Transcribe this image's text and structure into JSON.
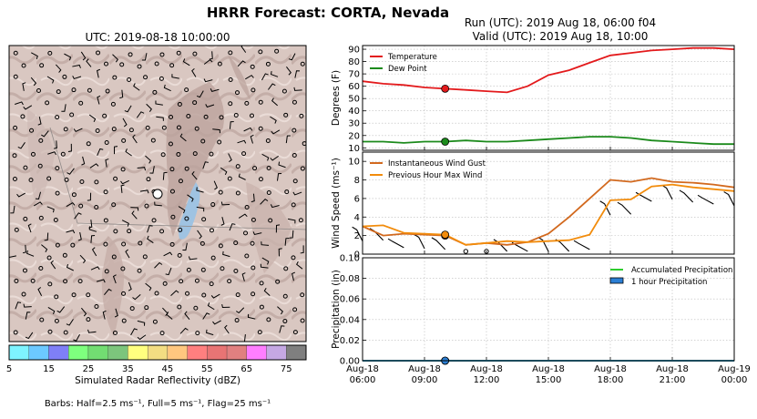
{
  "title": "HRRR Forecast: CORTA, Nevada",
  "map": {
    "subtitle": "UTC: 2019-08-18 10:00:00",
    "colorbar": {
      "label": "Simulated Radar Reflectivity (dBZ)",
      "ticks": [
        "5",
        "15",
        "25",
        "35",
        "45",
        "55",
        "65",
        "75"
      ],
      "colors": [
        "#7ef4ff",
        "#6cc9ff",
        "#7f7ff7",
        "#7eff7e",
        "#72dd72",
        "#7cc57c",
        "#ffff7f",
        "#f3dd82",
        "#ffc77f",
        "#ff7f7f",
        "#e87474",
        "#e18080",
        "#ff7eff",
        "#c5a8e3",
        "#7f7f7f"
      ]
    },
    "barbs_note": "Barbs: Half=2.5 ms⁻¹, Full=5 ms⁻¹, Flag=25 ms⁻¹"
  },
  "run_title": "Run (UTC): 2019 Aug 18, 06:00 f04",
  "valid_title": "Valid (UTC): 2019 Aug 18, 10:00",
  "colors": {
    "temperature": "#e31a1c",
    "dewpoint": "#1b8a1b",
    "gust": "#d2691e",
    "maxwind": "#f28c0c",
    "accum": "#2ecc2e",
    "hourly": "#2b7fd4"
  },
  "x_ticks": [
    [
      "Aug-18",
      "06:00"
    ],
    [
      "Aug-18",
      "09:00"
    ],
    [
      "Aug-18",
      "12:00"
    ],
    [
      "Aug-18",
      "15:00"
    ],
    [
      "Aug-18",
      "18:00"
    ],
    [
      "Aug-18",
      "21:00"
    ],
    [
      "Aug-19",
      "00:00"
    ]
  ],
  "chart_data": [
    {
      "type": "line",
      "ylabel": "Degrees (F)",
      "ylim": [
        8,
        93
      ],
      "yticks": [
        10,
        20,
        30,
        40,
        50,
        60,
        70,
        80,
        90
      ],
      "x_hours": [
        0,
        1,
        2,
        3,
        4,
        5,
        6,
        7,
        8,
        9,
        10,
        11,
        12,
        13,
        14,
        15,
        16,
        17,
        18
      ],
      "series": [
        {
          "name": "Temperature",
          "values": [
            64,
            62,
            61,
            59,
            58,
            57,
            56,
            55,
            60,
            69,
            73,
            79,
            85,
            87,
            89,
            90,
            91,
            91,
            90
          ]
        },
        {
          "name": "Dew Point",
          "values": [
            15,
            15,
            14,
            15,
            15,
            16,
            15,
            15,
            16,
            17,
            18,
            19,
            19,
            18,
            16,
            15,
            14,
            13,
            13
          ]
        }
      ],
      "marker_hour": 4,
      "legend": "top-left",
      "grid": true
    },
    {
      "type": "line",
      "ylabel": "Wind Speed (ms⁻¹)",
      "ylim": [
        0,
        11
      ],
      "yticks": [
        0,
        2,
        4,
        6,
        8,
        10
      ],
      "x_hours": [
        0,
        1,
        2,
        3,
        4,
        5,
        6,
        7,
        8,
        9,
        10,
        11,
        12,
        13,
        14,
        15,
        16,
        17,
        18
      ],
      "series": [
        {
          "name": "Instantaneous Wind Gust",
          "values": [
            3,
            2,
            2.2,
            2.1,
            2,
            1,
            1.2,
            1,
            1.3,
            2.2,
            4,
            6,
            8,
            7.8,
            8.2,
            7.8,
            7.7,
            7.5,
            7.2
          ]
        },
        {
          "name": "Previous Hour Max Wind",
          "values": [
            3,
            3.1,
            2.3,
            2.2,
            2.1,
            1,
            1.2,
            1.4,
            1.3,
            1.4,
            1.5,
            2.1,
            5.8,
            5.9,
            7.3,
            7.5,
            7.2,
            7,
            6.8
          ]
        }
      ],
      "marker_hour": 4,
      "legend": "top-left",
      "grid": true
    },
    {
      "type": "bar",
      "ylabel": "Precipitation (in)",
      "ylim": [
        0,
        0.1
      ],
      "yticks": [
        "0.00",
        "0.02",
        "0.04",
        "0.06",
        "0.08",
        "0.10"
      ],
      "x_hours": [
        0,
        1,
        2,
        3,
        4,
        5,
        6,
        7,
        8,
        9,
        10,
        11,
        12,
        13,
        14,
        15,
        16,
        17,
        18
      ],
      "series": [
        {
          "name": "Accumulated Precipitation",
          "values": [
            0,
            0,
            0,
            0,
            0,
            0,
            0,
            0,
            0,
            0,
            0,
            0,
            0,
            0,
            0,
            0,
            0,
            0,
            0
          ]
        },
        {
          "name": "1 hour Precipitation",
          "values": [
            0,
            0,
            0,
            0,
            0,
            0,
            0,
            0,
            0,
            0,
            0,
            0,
            0,
            0,
            0,
            0,
            0,
            0,
            0
          ]
        }
      ],
      "marker_hour": 4,
      "legend": "top-right",
      "grid": true
    }
  ]
}
